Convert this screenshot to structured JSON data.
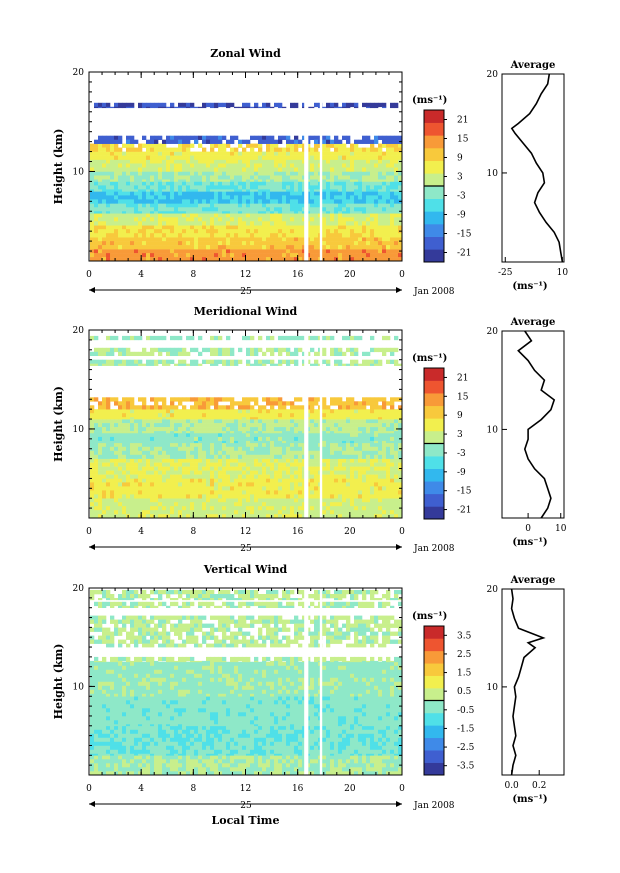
{
  "figure": {
    "date_label": "Jan 2008",
    "day_label": "25",
    "xlabel": "Local Time",
    "unit_text": "(ms",
    "unit_sup": "−1",
    "unit_close": ")"
  },
  "chart_data": [
    {
      "type": "heatmap",
      "title": "Zonal Wind",
      "xlabel": "",
      "ylabel": "Height (km)",
      "xticks": [
        "0",
        "4",
        "8",
        "12",
        "16",
        "20",
        "0"
      ],
      "x_range": [
        0,
        24
      ],
      "yticks": [
        "10",
        "20"
      ],
      "y_range": [
        1,
        20
      ],
      "colorbar": {
        "label": "(ms⁻¹)",
        "ticks": [
          "21",
          "15",
          "9",
          "3",
          "-3",
          "-9",
          "-15",
          "-21"
        ],
        "range": [
          -24,
          24
        ]
      },
      "profile_bands": [
        {
          "from": 1,
          "to": 2.2,
          "value": 14
        },
        {
          "from": 2.2,
          "to": 3.4,
          "value": 10
        },
        {
          "from": 3.4,
          "to": 4.6,
          "value": 7
        },
        {
          "from": 4.6,
          "to": 5.8,
          "value": 3
        },
        {
          "from": 5.8,
          "to": 6.8,
          "value": -3
        },
        {
          "from": 6.8,
          "to": 8.0,
          "value": -8
        },
        {
          "from": 8.0,
          "to": 9.0,
          "value": -4
        },
        {
          "from": 9.0,
          "to": 10.0,
          "value": 0
        },
        {
          "from": 10.0,
          "to": 11.2,
          "value": 3
        },
        {
          "from": 11.2,
          "to": 12.0,
          "value": 6
        },
        {
          "from": 12.0,
          "to": 12.8,
          "value": 8
        },
        {
          "from": 12.8,
          "to": 13.6,
          "value": -18
        },
        {
          "from": 16.4,
          "to": 16.9,
          "value": -20
        }
      ],
      "average_profile": {
        "title": "Average",
        "xticks": [
          "-25",
          "10"
        ],
        "x_range": [
          -27,
          11
        ],
        "xlabel": "(ms⁻¹)",
        "yticks": [
          "10",
          "20"
        ],
        "points": [
          [
            10,
            1
          ],
          [
            9,
            2
          ],
          [
            8,
            3
          ],
          [
            5,
            4
          ],
          [
            0,
            5
          ],
          [
            -4,
            6
          ],
          [
            -7,
            7
          ],
          [
            -5,
            8
          ],
          [
            -1,
            9
          ],
          [
            -2,
            10
          ],
          [
            -6,
            11
          ],
          [
            -9,
            12
          ],
          [
            -14,
            13
          ],
          [
            -19,
            14
          ],
          [
            -21,
            14.5
          ],
          [
            -17,
            15
          ],
          [
            -10,
            16
          ],
          [
            -6,
            17
          ],
          [
            -3,
            18
          ],
          [
            1,
            19
          ],
          [
            2,
            20
          ]
        ]
      }
    },
    {
      "type": "heatmap",
      "title": "Meridional Wind",
      "xlabel": "",
      "ylabel": "Height (km)",
      "xticks": [
        "0",
        "4",
        "8",
        "12",
        "16",
        "20",
        "0"
      ],
      "x_range": [
        0,
        24
      ],
      "yticks": [
        "10",
        "20"
      ],
      "y_range": [
        1,
        20
      ],
      "colorbar": {
        "label": "(ms⁻¹)",
        "ticks": [
          "21",
          "15",
          "9",
          "3",
          "-3",
          "-9",
          "-15",
          "-21"
        ],
        "range": [
          -24,
          24
        ]
      },
      "profile_bands": [
        {
          "from": 1,
          "to": 3.0,
          "value": 3
        },
        {
          "from": 3.0,
          "to": 5.0,
          "value": 6
        },
        {
          "from": 5.0,
          "to": 7.0,
          "value": 4
        },
        {
          "from": 7.0,
          "to": 8.6,
          "value": 0
        },
        {
          "from": 8.6,
          "to": 9.6,
          "value": -2
        },
        {
          "from": 9.6,
          "to": 11.0,
          "value": 1
        },
        {
          "from": 11.0,
          "to": 12.0,
          "value": 6
        },
        {
          "from": 12.0,
          "to": 13.2,
          "value": 11
        },
        {
          "from": 16.4,
          "to": 17.0,
          "value": 0
        },
        {
          "from": 17.4,
          "to": 18.2,
          "value": 1
        },
        {
          "from": 19.0,
          "to": 19.4,
          "value": -1
        }
      ],
      "average_profile": {
        "title": "Average",
        "xticks": [
          "0",
          "10"
        ],
        "x_range": [
          -8,
          11
        ],
        "xlabel": "(ms⁻¹)",
        "yticks": [
          "10",
          "20"
        ],
        "points": [
          [
            4,
            1
          ],
          [
            6,
            2
          ],
          [
            7,
            3
          ],
          [
            6,
            4
          ],
          [
            5,
            5
          ],
          [
            2,
            6
          ],
          [
            0,
            7
          ],
          [
            -1,
            8
          ],
          [
            0,
            9
          ],
          [
            0,
            10
          ],
          [
            4,
            11
          ],
          [
            7,
            12
          ],
          [
            8,
            13
          ],
          [
            4,
            14
          ],
          [
            5,
            15
          ],
          [
            2,
            16
          ],
          [
            0,
            17
          ],
          [
            -3,
            18
          ],
          [
            1,
            19
          ],
          [
            -1,
            20
          ]
        ]
      }
    },
    {
      "type": "heatmap",
      "title": "Vertical Wind",
      "xlabel": "Local Time",
      "ylabel": "Height (km)",
      "xticks": [
        "0",
        "4",
        "8",
        "12",
        "16",
        "20",
        "0"
      ],
      "x_range": [
        0,
        24
      ],
      "yticks": [
        "10",
        "20"
      ],
      "y_range": [
        1,
        20
      ],
      "colorbar": {
        "label": "(ms⁻¹)",
        "ticks": [
          "3.5",
          "2.5",
          "1.5",
          "0.5",
          "-0.5",
          "-1.5",
          "-2.5",
          "-3.5"
        ],
        "range": [
          -4,
          4
        ]
      },
      "profile_bands": [
        {
          "from": 1,
          "to": 3.0,
          "value": 0.0
        },
        {
          "from": 3.0,
          "to": 6.0,
          "value": -0.6
        },
        {
          "from": 6.0,
          "to": 9.0,
          "value": -0.4
        },
        {
          "from": 9.0,
          "to": 12.5,
          "value": -0.2
        },
        {
          "from": 12.5,
          "to": 13.0,
          "value": 0.2
        },
        {
          "from": 14.0,
          "to": 17.2,
          "value": 0.1
        },
        {
          "from": 18.0,
          "to": 18.6,
          "value": 0.1
        },
        {
          "from": 18.8,
          "to": 19.8,
          "value": 0.1
        }
      ],
      "average_profile": {
        "title": "Average",
        "xticks": [
          "0.0",
          "0.2"
        ],
        "x_range": [
          -0.07,
          0.38
        ],
        "xlabel": "(ms⁻¹)",
        "yticks": [
          "10",
          "20"
        ],
        "points": [
          [
            0,
            1
          ],
          [
            0.01,
            2
          ],
          [
            0.03,
            3
          ],
          [
            0.01,
            4
          ],
          [
            0.03,
            5
          ],
          [
            0.02,
            6
          ],
          [
            0.01,
            7
          ],
          [
            0.02,
            8
          ],
          [
            0.03,
            9
          ],
          [
            0.02,
            10
          ],
          [
            0.05,
            11
          ],
          [
            0.07,
            12
          ],
          [
            0.09,
            13
          ],
          [
            0.17,
            14
          ],
          [
            0.12,
            14.5
          ],
          [
            0.23,
            15
          ],
          [
            0.05,
            16
          ],
          [
            0.02,
            17
          ],
          [
            0,
            18
          ],
          [
            0.01,
            19
          ],
          [
            0,
            20
          ]
        ]
      }
    }
  ]
}
